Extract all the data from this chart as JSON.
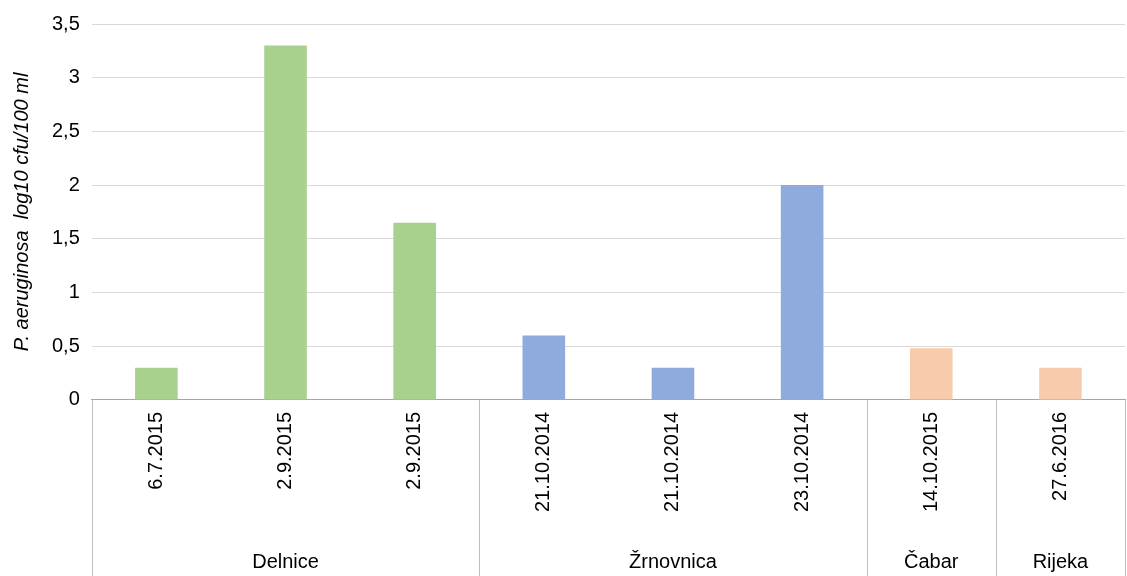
{
  "chart_data": {
    "type": "bar",
    "ylabel": "P. aeruginosa  log10 cfu/100 ml",
    "categories": [
      "6.7.2015",
      "2.9.2015",
      "2.9.2015",
      "21.10.2014",
      "21.10.2014",
      "23.10.2014",
      "14.10.2015",
      "27.6.2016"
    ],
    "series": [
      {
        "color": "#a9d18e",
        "values": [
          0.3,
          3.3,
          1.65,
          null,
          null,
          null,
          null,
          null
        ]
      },
      {
        "color": "#8faadc",
        "values": [
          null,
          null,
          null,
          0.6,
          0.3,
          2.0,
          null,
          null
        ]
      },
      {
        "color": "#f8cbad",
        "values": [
          null,
          null,
          null,
          null,
          null,
          null,
          0.48,
          null
        ]
      },
      {
        "color": "#f8cbad",
        "values": [
          null,
          null,
          null,
          null,
          null,
          null,
          null,
          0.3
        ]
      }
    ],
    "ylim": [
      0,
      3.5
    ],
    "yticks": [
      {
        "value": 0,
        "label": "0"
      },
      {
        "value": 0.5,
        "label": "0,5"
      },
      {
        "value": 1,
        "label": "1"
      },
      {
        "value": 1.5,
        "label": "1,5"
      },
      {
        "value": 2,
        "label": "2"
      },
      {
        "value": 2.5,
        "label": "2,5"
      },
      {
        "value": 3,
        "label": "3"
      },
      {
        "value": 3.5,
        "label": "3,5"
      }
    ],
    "annotations": [
      "Delnice",
      "Žrnovnica",
      "Čabar",
      "Rijeka"
    ],
    "grid": "y",
    "legend": false
  }
}
